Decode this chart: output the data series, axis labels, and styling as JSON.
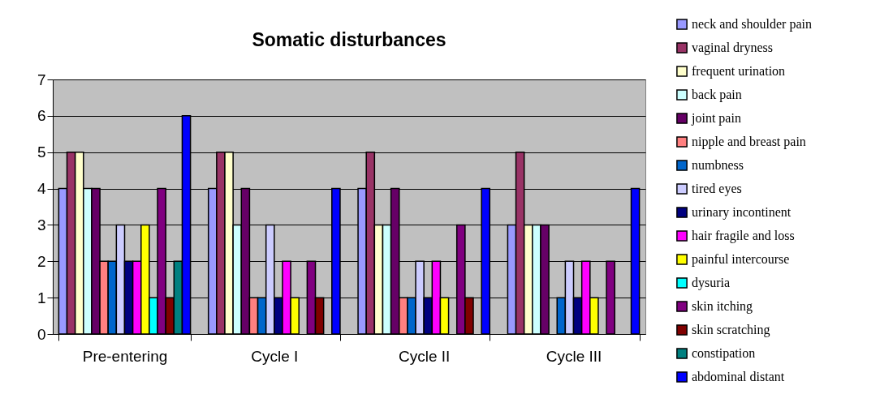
{
  "chart_data": {
    "type": "bar",
    "title": "Somatic disturbances",
    "categories": [
      "Pre-entering",
      "Cycle I",
      "Cycle II",
      "Cycle III"
    ],
    "series": [
      {
        "name": "neck and shoulder pain",
        "color": "#9999ff",
        "values": [
          4,
          4,
          4,
          3
        ]
      },
      {
        "name": "vaginal dryness",
        "color": "#993366",
        "values": [
          5,
          5,
          5,
          5
        ]
      },
      {
        "name": "frequent urination",
        "color": "#ffffcc",
        "values": [
          5,
          5,
          3,
          3
        ]
      },
      {
        "name": "back pain",
        "color": "#ccffff",
        "values": [
          4,
          3,
          3,
          3
        ]
      },
      {
        "name": "joint pain",
        "color": "#660066",
        "values": [
          4,
          4,
          4,
          3
        ]
      },
      {
        "name": "nipple and breast pain",
        "color": "#ff8080",
        "values": [
          2,
          1,
          1,
          0
        ]
      },
      {
        "name": "numbness",
        "color": "#0066cc",
        "values": [
          2,
          1,
          1,
          1
        ]
      },
      {
        "name": "tired eyes",
        "color": "#ccccff",
        "values": [
          3,
          3,
          2,
          2
        ]
      },
      {
        "name": "urinary incontinent",
        "color": "#000080",
        "values": [
          2,
          1,
          1,
          1
        ]
      },
      {
        "name": "hair fragile and loss",
        "color": "#ff00ff",
        "values": [
          2,
          2,
          2,
          2
        ]
      },
      {
        "name": "painful intercourse",
        "color": "#ffff00",
        "values": [
          3,
          1,
          1,
          1
        ]
      },
      {
        "name": "dysuria",
        "color": "#00ffff",
        "values": [
          1,
          0,
          0,
          0
        ]
      },
      {
        "name": "skin  itching",
        "color": "#800080",
        "values": [
          4,
          2,
          3,
          2
        ]
      },
      {
        "name": "skin  scratching",
        "color": "#800000",
        "values": [
          1,
          1,
          1,
          0
        ]
      },
      {
        "name": "constipation",
        "color": "#008080",
        "values": [
          2,
          0,
          0,
          0
        ]
      },
      {
        "name": "abdominal distant",
        "color": "#0000ff",
        "values": [
          6,
          4,
          4,
          4
        ]
      }
    ],
    "ylim": [
      0,
      7
    ],
    "yticks": [
      0,
      1,
      2,
      3,
      4,
      5,
      6,
      7
    ],
    "grid": "y",
    "legend": "right"
  }
}
